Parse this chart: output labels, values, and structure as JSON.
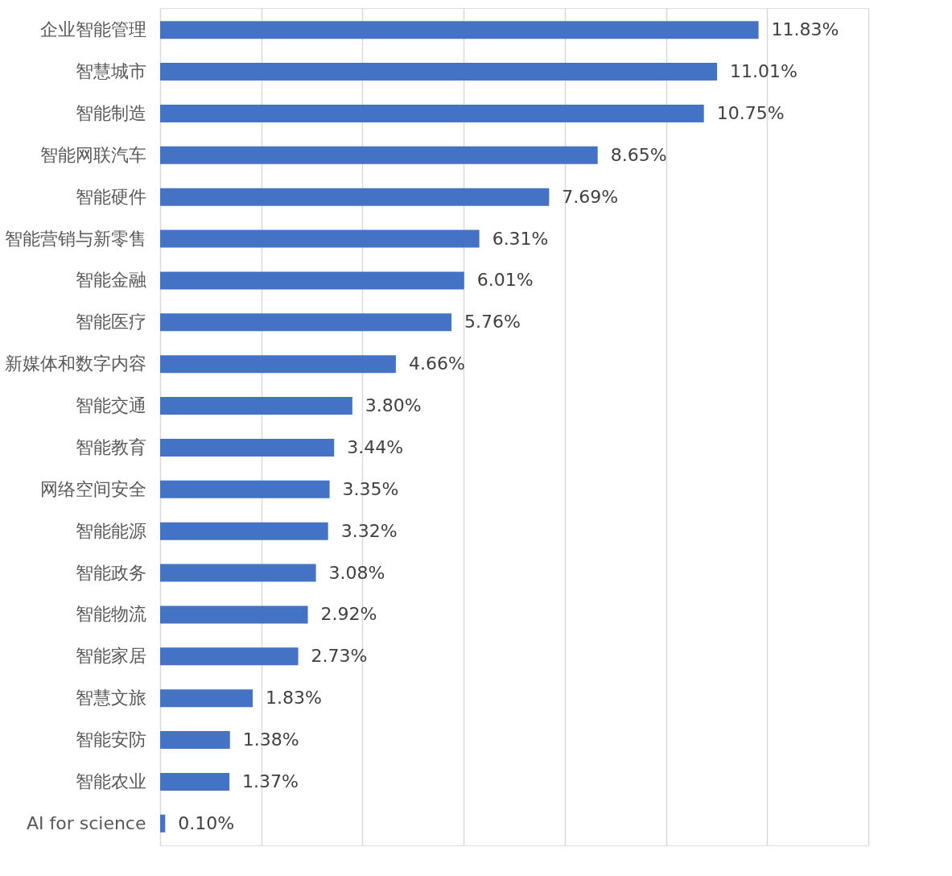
{
  "chart_data": {
    "type": "bar",
    "orientation": "horizontal",
    "categories": [
      "企业智能管理",
      "智慧城市",
      "智能制造",
      "智能网联汽车",
      "智能硬件",
      "智能营销与新零售",
      "智能金融",
      "智能医疗",
      "新媒体和数字内容",
      "智能交通",
      "智能教育",
      "网络空间安全",
      "智能能源",
      "智能政务",
      "智能物流",
      "智能家居",
      "智慧文旅",
      "智能安防",
      "智能农业",
      "AI for science"
    ],
    "values": [
      11.83,
      11.01,
      10.75,
      8.65,
      7.69,
      6.31,
      6.01,
      5.76,
      4.66,
      3.8,
      3.44,
      3.35,
      3.32,
      3.08,
      2.92,
      2.73,
      1.83,
      1.38,
      1.37,
      0.1
    ],
    "value_labels": [
      "11.83%",
      "11.01%",
      "10.75%",
      "8.65%",
      "7.69%",
      "6.31%",
      "6.01%",
      "5.76%",
      "4.66%",
      "3.80%",
      "3.44%",
      "3.35%",
      "3.32%",
      "3.08%",
      "2.92%",
      "2.73%",
      "1.83%",
      "1.38%",
      "1.37%",
      "0.10%"
    ],
    "color": "#4472c4",
    "xlim": [
      0,
      14
    ],
    "xticks": [
      {
        "value": 0,
        "label": null
      },
      {
        "value": 2,
        "label": null
      },
      {
        "value": 4,
        "label": null
      },
      {
        "value": 6,
        "label": null
      },
      {
        "value": 8,
        "label": null
      },
      {
        "value": 10,
        "label": null
      },
      {
        "value": 12,
        "label": null
      },
      {
        "value": 14,
        "label": null
      }
    ],
    "grid": "x",
    "tick_labels": "y"
  }
}
